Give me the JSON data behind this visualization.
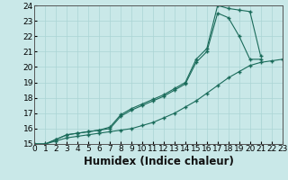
{
  "xlabel": "Humidex (Indice chaleur)",
  "ylabel": "",
  "xlim": [
    0,
    23
  ],
  "ylim": [
    15,
    24
  ],
  "xticks": [
    0,
    1,
    2,
    3,
    4,
    5,
    6,
    7,
    8,
    9,
    10,
    11,
    12,
    13,
    14,
    15,
    16,
    17,
    18,
    19,
    20,
    21,
    22,
    23
  ],
  "yticks": [
    15,
    16,
    17,
    18,
    19,
    20,
    21,
    22,
    23,
    24
  ],
  "bg_color": "#c9e8e8",
  "line_color": "#1a6b5a",
  "line1_x": [
    0,
    1,
    2,
    3,
    4,
    5,
    6,
    7,
    8,
    9,
    10,
    11,
    12,
    13,
    14,
    15,
    16,
    17,
    18,
    19,
    20,
    21,
    22,
    23
  ],
  "line1_y": [
    15,
    15,
    15.2,
    15.4,
    15.5,
    15.6,
    15.7,
    15.8,
    15.9,
    16.0,
    16.2,
    16.4,
    16.7,
    17.0,
    17.4,
    17.8,
    18.3,
    18.8,
    19.3,
    19.7,
    20.1,
    20.3,
    20.4,
    20.5
  ],
  "line2_x": [
    0,
    1,
    2,
    3,
    4,
    5,
    6,
    7,
    8,
    9,
    10,
    11,
    12,
    13,
    14,
    15,
    16,
    17,
    18,
    19,
    20,
    21,
    22,
    23
  ],
  "line2_y": [
    15,
    15,
    15.3,
    15.6,
    15.7,
    15.8,
    15.9,
    16.0,
    16.8,
    17.2,
    17.5,
    17.8,
    18.1,
    18.5,
    18.9,
    20.3,
    21.0,
    23.5,
    23.2,
    22.0,
    20.5,
    20.5,
    null,
    null
  ],
  "line3_x": [
    0,
    1,
    2,
    3,
    4,
    5,
    6,
    7,
    8,
    9,
    10,
    11,
    12,
    13,
    14,
    15,
    16,
    17,
    18,
    19,
    20,
    21,
    22,
    23
  ],
  "line3_y": [
    15,
    15,
    15.3,
    15.6,
    15.7,
    15.8,
    15.9,
    16.1,
    16.9,
    17.3,
    17.6,
    17.9,
    18.2,
    18.6,
    19.0,
    20.5,
    21.2,
    24.0,
    23.8,
    23.7,
    23.6,
    20.7,
    null,
    null
  ],
  "grid_color": "#aad4d4",
  "tick_fontsize": 6.5,
  "xlabel_fontsize": 8.5
}
